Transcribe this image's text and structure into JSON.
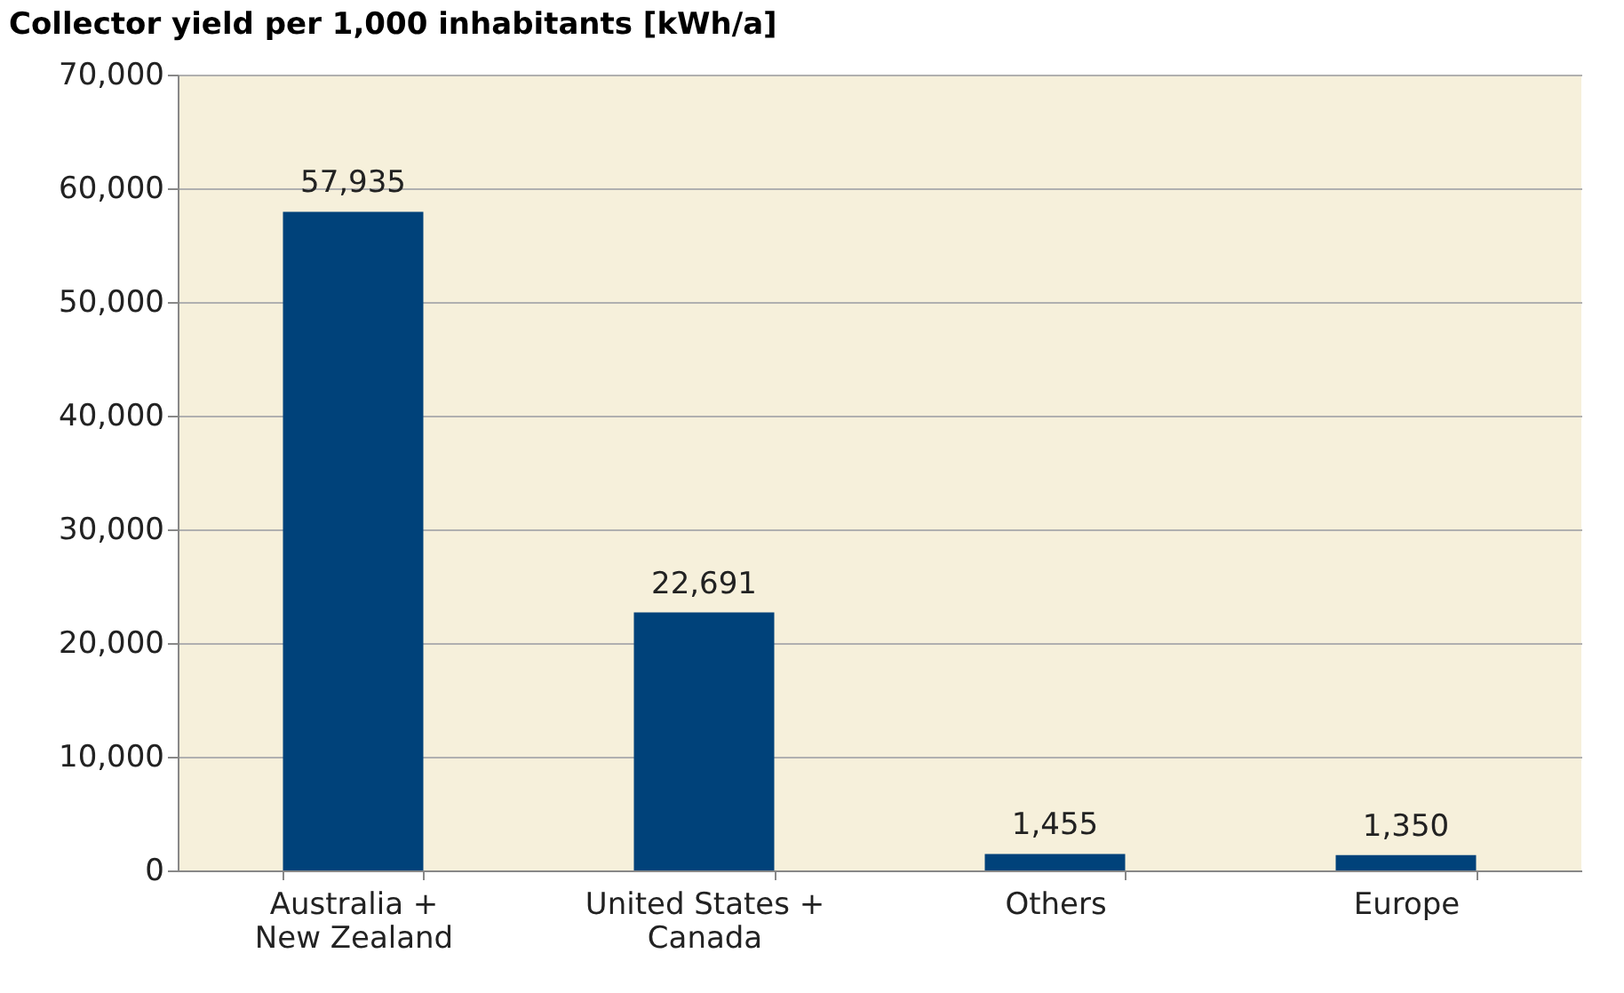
{
  "chart_data": {
    "type": "bar",
    "title": "Collector yield per 1,000 inhabitants [kWh/a]",
    "categories": [
      "Australia +\nNew Zealand",
      "United States +\nCanada",
      "Others",
      "Europe"
    ],
    "values": [
      57935,
      22691,
      1455,
      1350
    ],
    "color": "#00427a",
    "value_labels": [
      "57,935",
      "22,691",
      "1,455",
      "1,350"
    ],
    "ylim": [
      0,
      70000
    ],
    "yticks": [
      {
        "value": 0,
        "label": "0"
      },
      {
        "value": 10000,
        "label": "10,000"
      },
      {
        "value": 20000,
        "label": "20,000"
      },
      {
        "value": 30000,
        "label": "30,000"
      },
      {
        "value": 40000,
        "label": "40,000"
      },
      {
        "value": 50000,
        "label": "50,000"
      },
      {
        "value": 60000,
        "label": "60,000"
      },
      {
        "value": 70000,
        "label": "70,000"
      }
    ],
    "grid": "y"
  }
}
